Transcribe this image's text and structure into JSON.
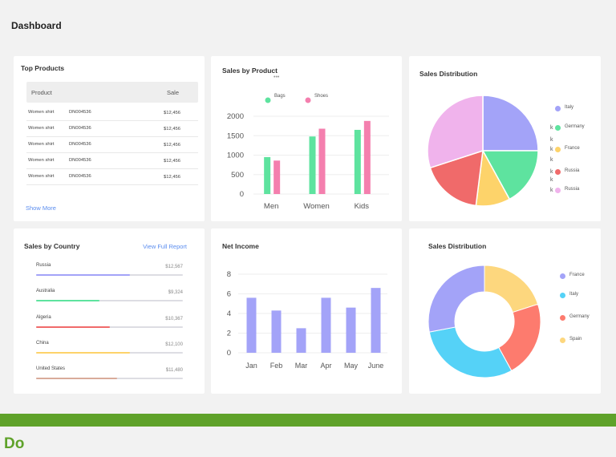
{
  "page_title": "Dashboard",
  "top_products": {
    "title": "Top Products",
    "col_product": "Product",
    "col_sale": "Sale",
    "rows": [
      {
        "name": "Women shirt",
        "code": "DN004536",
        "sale": "$12,456"
      },
      {
        "name": "Women shirt",
        "code": "DN004536",
        "sale": "$12,456"
      },
      {
        "name": "Women shirt",
        "code": "DN004536",
        "sale": "$12,456"
      },
      {
        "name": "Women shirt",
        "code": "DN004536",
        "sale": "$12,456"
      },
      {
        "name": "Women shirt",
        "code": "DN004536",
        "sale": "$12,456"
      }
    ],
    "show_more": "Show More"
  },
  "sales_by_product": {
    "title": "Sales by Product",
    "legend": [
      {
        "name": "Bags",
        "color": "#5ee39f"
      },
      {
        "name": "Shoes",
        "color": "#f47fae"
      }
    ]
  },
  "sales_distribution_pie": {
    "title": "Sales Distribution",
    "legend": [
      {
        "name": "Italy",
        "color": "#a3a3f8"
      },
      {
        "name": "Germany",
        "color": "#5ee39f"
      },
      {
        "name": "France",
        "color": "#fdd36a"
      },
      {
        "name": "Russia",
        "color": "#f06a6a"
      },
      {
        "name": "Russia",
        "color": "#f0b3ec"
      }
    ],
    "stray_marks": [
      "k",
      "k",
      "k",
      "k",
      "k",
      "k",
      "k"
    ]
  },
  "sales_by_country": {
    "title": "Sales by Country",
    "view_full": "View Full Report",
    "countries": [
      {
        "name": "Russia",
        "value": "$12,567",
        "fraction": 0.64,
        "color": "#a3a3f8"
      },
      {
        "name": "Australia",
        "value": "$9,324",
        "fraction": 0.43,
        "color": "#5ee39f"
      },
      {
        "name": "Algeria",
        "value": "$10,367",
        "fraction": 0.5,
        "color": "#f06a6a"
      },
      {
        "name": "China",
        "value": "$12,100",
        "fraction": 0.64,
        "color": "#fdd36a"
      },
      {
        "name": "United States",
        "value": "$11,480",
        "fraction": 0.55,
        "color": "#d9ab9a"
      }
    ]
  },
  "net_income": {
    "title": "Net Income"
  },
  "sales_distribution_donut": {
    "title": "Sales Distribution",
    "legend": [
      {
        "name": "France",
        "color": "#a3a3f8"
      },
      {
        "name": "Italy",
        "color": "#55d2f7"
      },
      {
        "name": "Germany",
        "color": "#fd7b6e"
      },
      {
        "name": "Spain",
        "color": "#fdd77e"
      }
    ]
  },
  "footer": {
    "label": "Do",
    "band_color": "#5fa22a"
  },
  "chart_data": [
    {
      "type": "bar",
      "title": "Sales by Product",
      "categories": [
        "Men",
        "Women",
        "Kids"
      ],
      "series": [
        {
          "name": "Bags",
          "values": [
            950,
            1480,
            1650
          ]
        },
        {
          "name": "Shoes",
          "values": [
            860,
            1680,
            1880
          ]
        }
      ],
      "ylim": [
        0,
        2000
      ],
      "yticks": [
        0,
        500,
        1000,
        1500,
        2000
      ],
      "grid": true
    },
    {
      "type": "pie",
      "title": "Sales Distribution",
      "labels": [
        "Italy",
        "Germany",
        "France",
        "Russia",
        "Russia"
      ],
      "values": [
        25,
        17,
        10,
        18,
        30
      ],
      "colors": [
        "#a3a3f8",
        "#5ee39f",
        "#fdd36a",
        "#f06a6a",
        "#f0b3ec"
      ]
    },
    {
      "type": "bar",
      "title": "Net Income",
      "categories": [
        "Jan",
        "Feb",
        "Mar",
        "Apr",
        "May",
        "June"
      ],
      "values": [
        5.6,
        4.3,
        2.5,
        5.6,
        4.6,
        6.6
      ],
      "ylim": [
        0,
        8
      ],
      "yticks": [
        0,
        2,
        4,
        6,
        8
      ],
      "color": "#a3a3f8",
      "grid": true
    },
    {
      "type": "pie",
      "subtype": "donut",
      "title": "Sales Distribution",
      "labels": [
        "France",
        "Italy",
        "Germany",
        "Spain"
      ],
      "values": [
        28,
        30,
        22,
        20
      ],
      "colors": [
        "#a3a3f8",
        "#55d2f7",
        "#fd7b6e",
        "#fdd77e"
      ]
    }
  ]
}
